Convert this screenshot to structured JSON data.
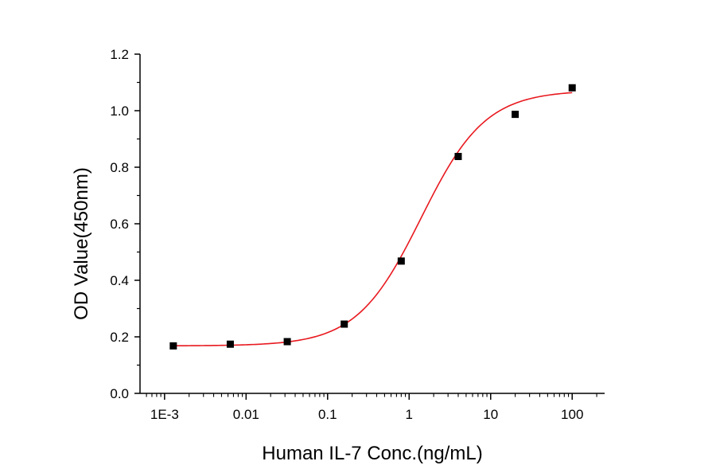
{
  "chart_data": {
    "type": "scatter",
    "title": "",
    "xlabel": "Human IL-7 Conc.(ng/mL)",
    "ylabel": "OD Value(450nm)",
    "x_scale": "log",
    "xlim": [
      0.0005,
      250
    ],
    "ylim": [
      0,
      1.2
    ],
    "x_ticks": [
      0.001,
      0.01,
      0.1,
      1,
      10,
      100
    ],
    "x_tick_labels": [
      "1E-3",
      "0.01",
      "0.1",
      "1",
      "10",
      "100"
    ],
    "y_ticks": [
      0,
      0.2,
      0.4,
      0.6,
      0.8,
      1.0,
      1.2
    ],
    "y_tick_labels": [
      "0.0",
      "0.2",
      "0.4",
      "0.6",
      "0.8",
      "1.0",
      "1.2"
    ],
    "grid": false,
    "legend": "none",
    "series": [
      {
        "type": "scatter",
        "marker": "square",
        "color": "#000000",
        "x": [
          0.00128,
          0.0064,
          0.032,
          0.16,
          0.8,
          4,
          20,
          100
        ],
        "y": [
          0.168,
          0.174,
          0.183,
          0.245,
          0.468,
          0.838,
          0.987,
          1.081
        ]
      },
      {
        "type": "line",
        "style": "fitted sigmoidal curve",
        "color": "#e8191f",
        "fit": {
          "bottom": 0.168,
          "top": 1.072,
          "ec50": 1.4,
          "hill": 1.1
        },
        "x_range": [
          0.00128,
          100
        ]
      }
    ]
  }
}
